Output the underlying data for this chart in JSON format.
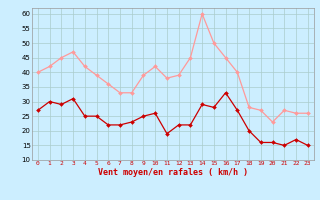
{
  "hours": [
    0,
    1,
    2,
    3,
    4,
    5,
    6,
    7,
    8,
    9,
    10,
    11,
    12,
    13,
    14,
    15,
    16,
    17,
    18,
    19,
    20,
    21,
    22,
    23
  ],
  "wind_avg": [
    27,
    30,
    29,
    31,
    25,
    25,
    22,
    22,
    23,
    25,
    26,
    19,
    22,
    22,
    29,
    28,
    33,
    27,
    20,
    16,
    16,
    15,
    17,
    15
  ],
  "wind_gust": [
    40,
    42,
    45,
    47,
    42,
    39,
    36,
    33,
    33,
    39,
    42,
    38,
    39,
    45,
    60,
    50,
    45,
    40,
    28,
    27,
    23,
    27,
    26,
    26
  ],
  "avg_color": "#cc0000",
  "gust_color": "#ff9999",
  "bg_color": "#cceeff",
  "grid_color": "#aacccc",
  "xlabel": "Vent moyen/en rafales ( km/h )",
  "ymin": 10,
  "ymax": 62,
  "yticks": [
    10,
    15,
    20,
    25,
    30,
    35,
    40,
    45,
    50,
    55,
    60
  ],
  "ytick_labels": [
    "10",
    "15",
    "20",
    "25",
    "30",
    "35",
    "40",
    "45",
    "50",
    "55",
    "60"
  ]
}
